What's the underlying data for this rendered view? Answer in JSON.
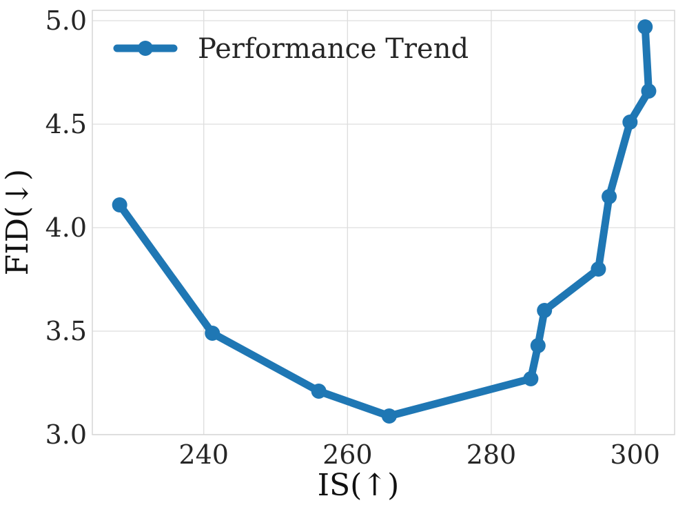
{
  "chart_data": {
    "type": "line",
    "xlabel": "IS(↑)",
    "ylabel": "FID(↓)",
    "xlim": [
      224.5,
      305.5
    ],
    "ylim": [
      3.0,
      5.05
    ],
    "xticks": [
      240,
      260,
      280,
      300
    ],
    "yticks": [
      3.0,
      3.5,
      4.0,
      4.5,
      5.0
    ],
    "xtick_labels": [
      "240",
      "260",
      "280",
      "300"
    ],
    "ytick_labels": [
      "3.0",
      "3.5",
      "4.0",
      "4.5",
      "5.0"
    ],
    "grid": true,
    "legend_position": "top-left",
    "series": [
      {
        "name": "Performance Trend",
        "color": "#1f77b4",
        "points": [
          {
            "x": 228.3,
            "y": 4.11
          },
          {
            "x": 241.2,
            "y": 3.49
          },
          {
            "x": 256.0,
            "y": 3.21
          },
          {
            "x": 265.8,
            "y": 3.09
          },
          {
            "x": 285.5,
            "y": 3.27
          },
          {
            "x": 286.5,
            "y": 3.43
          },
          {
            "x": 287.4,
            "y": 3.6
          },
          {
            "x": 294.9,
            "y": 3.8
          },
          {
            "x": 296.4,
            "y": 4.15
          },
          {
            "x": 299.3,
            "y": 4.51
          },
          {
            "x": 301.9,
            "y": 4.66
          },
          {
            "x": 301.4,
            "y": 4.97
          }
        ]
      }
    ]
  }
}
